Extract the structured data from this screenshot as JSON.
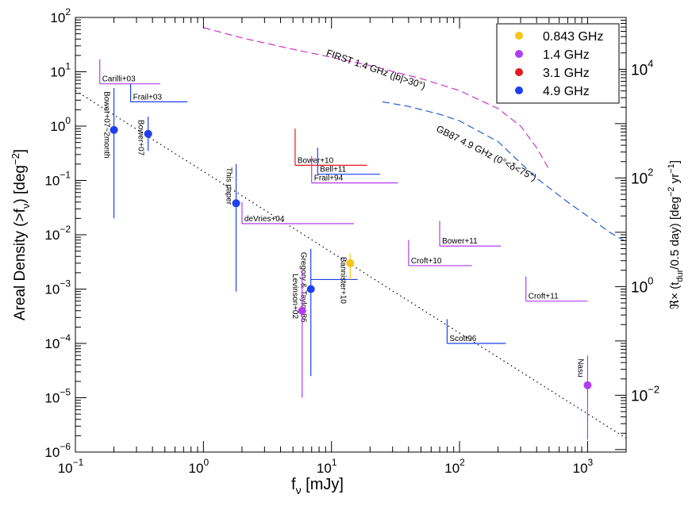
{
  "chart_data": {
    "type": "scatter",
    "title": "",
    "xlabel": "f",
    "xlabel_sub": "ν",
    "xlabel_unit": " [mJy]",
    "ylabel": "Areal Density (>f",
    "ylabel_sub": "ν",
    "ylabel_unit": ") [deg",
    "ylabel_sup": "−2",
    "ylabel_end": "]",
    "y2label": "ℜ× (t",
    "y2label_sub": "dur",
    "y2label_mid": "/0.5 day) [deg",
    "y2label_sup": "−2",
    "y2label_mid2": " yr",
    "y2label_sup2": "−1",
    "y2label_end": "]",
    "xscale": "log",
    "yscale": "log",
    "xlim": [
      0.1,
      2000
    ],
    "ylim": [
      1e-06,
      100
    ],
    "y2lim": [
      0.0009,
      90000
    ],
    "x_ticks": [
      {
        "value": 0.1,
        "base": "10",
        "exp": "−1"
      },
      {
        "value": 1,
        "base": "10",
        "exp": "0"
      },
      {
        "value": 10,
        "base": "10",
        "exp": "1"
      },
      {
        "value": 100,
        "base": "10",
        "exp": "2"
      },
      {
        "value": 1000,
        "base": "10",
        "exp": "3"
      }
    ],
    "y_ticks": [
      {
        "value": 1e-06,
        "base": "10",
        "exp": "−6"
      },
      {
        "value": 1e-05,
        "base": "10",
        "exp": "−5"
      },
      {
        "value": 0.0001,
        "base": "10",
        "exp": "−4"
      },
      {
        "value": 0.001,
        "base": "10",
        "exp": "−3"
      },
      {
        "value": 0.01,
        "base": "10",
        "exp": "−2"
      },
      {
        "value": 0.1,
        "base": "10",
        "exp": "−1"
      },
      {
        "value": 1,
        "base": "10",
        "exp": "0"
      },
      {
        "value": 10,
        "base": "10",
        "exp": "1"
      },
      {
        "value": 100,
        "base": "10",
        "exp": "2"
      }
    ],
    "y2_ticks": [
      {
        "value": 0.01,
        "base": "10",
        "exp": "−2"
      },
      {
        "value": 1,
        "base": "10",
        "exp": "0"
      },
      {
        "value": 100,
        "base": "10",
        "exp": "2"
      },
      {
        "value": 10000,
        "base": "10",
        "exp": "4"
      }
    ],
    "legend": {
      "position": "top-right",
      "entries": [
        {
          "label": "0.843 GHz",
          "color": "#f5c518"
        },
        {
          "label": "1.4 GHz",
          "color": "#b23cf0"
        },
        {
          "label": "3.1 GHz",
          "color": "#e8191e"
        },
        {
          "label": "4.9 GHz",
          "color": "#1f3ff0"
        }
      ]
    },
    "points": [
      {
        "label": "Bower+07~2month",
        "x": 0.2,
        "y": 0.85,
        "ylo": 0.02,
        "yhi": 5,
        "color": "#1f3ff0",
        "label_rotated": true
      },
      {
        "label": "Bower+07",
        "x": 0.37,
        "y": 0.72,
        "ylo": 0.35,
        "yhi": 1.5,
        "color": "#1f3ff0",
        "label_rotated": true
      },
      {
        "label": "This paper",
        "x": 1.8,
        "y": 0.038,
        "ylo": 0.0009,
        "yhi": 0.2,
        "color": "#1f3ff0",
        "label_rotated": true
      },
      {
        "label": "Gregory & Taylor 86",
        "x": 6.9,
        "y": 0.001,
        "ylo": 2.5e-05,
        "yhi": 0.0055,
        "color": "#1f3ff0",
        "label_rotated": true
      },
      {
        "label": "Levinson+02",
        "x": 5.9,
        "y": 0.0004,
        "ylo": 1e-05,
        "yhi": 0.0022,
        "color": "#b23cf0",
        "label_rotated": true
      },
      {
        "label": "Bannister+10",
        "x": 14,
        "y": 0.003,
        "ylo": 0.0015,
        "yhi": 0.0045,
        "color": "#f5c518",
        "label_rotated": true
      },
      {
        "label": "Nasu",
        "x": 1000,
        "y": 1.7e-05,
        "ylo": 1.7e-06,
        "yhi": 6e-05,
        "color": "#b23cf0",
        "label_rotated": true
      }
    ],
    "limits": [
      {
        "label": "Carilli+03",
        "x": 0.155,
        "x2": 0.46,
        "y": 6,
        "ytop": 17,
        "color": "#b23cf0"
      },
      {
        "label": "Frail+03",
        "x": 0.27,
        "x2": 0.75,
        "y": 2.8,
        "ytop": 6,
        "color": "#1f3ff0"
      },
      {
        "label": "Bower+10",
        "x": 5.2,
        "x2": 19,
        "y": 0.19,
        "ytop": 0.9,
        "color": "#e8191e"
      },
      {
        "label": "Bell+11",
        "x": 7.8,
        "x2": 24,
        "y": 0.13,
        "ytop": 0.4,
        "color": "#1f3ff0"
      },
      {
        "label": "Frail+94",
        "x": 7.0,
        "x2": 33,
        "y": 0.09,
        "ytop": 0.28,
        "color": "#b23cf0"
      },
      {
        "label": "deVries+04",
        "x": 2.0,
        "x2": 15,
        "y": 0.016,
        "ytop": 0.04,
        "color": "#b23cf0"
      },
      {
        "label": "Gregory & Taylor 86",
        "x": 6.9,
        "x2": 16,
        "y": 0.0015,
        "ytop": 0.0015,
        "color": "#1f3ff0",
        "hide_label": true
      },
      {
        "label": "Croft+10",
        "x": 40,
        "x2": 125,
        "y": 0.0027,
        "ytop": 0.008,
        "color": "#b23cf0"
      },
      {
        "label": "Bower+11",
        "x": 70,
        "x2": 210,
        "y": 0.0062,
        "ytop": 0.018,
        "color": "#b23cf0"
      },
      {
        "label": "Croft+11",
        "x": 330,
        "x2": 1000,
        "y": 0.0006,
        "ytop": 0.0017,
        "color": "#b23cf0"
      },
      {
        "label": "Scott96",
        "x": 80,
        "x2": 230,
        "y": 0.0001,
        "ytop": 0.00028,
        "color": "#1f3ff0"
      }
    ],
    "curves": [
      {
        "label": "FIRST 1.4 GHz (|b|>30°)",
        "color": "#cc33cc",
        "dash": true,
        "x": [
          1,
          2,
          5,
          10,
          20,
          50,
          100,
          200,
          300,
          400,
          500
        ],
        "y": [
          65,
          42,
          26,
          18.5,
          13,
          7.5,
          4.5,
          2.1,
          1.0,
          0.4,
          0.16
        ]
      },
      {
        "label": "GB87 4.9 GHz (0°<δ<75°)",
        "color": "#1f5fd0",
        "dash": true,
        "x": [
          25,
          40,
          70,
          100,
          200,
          400,
          700,
          1000,
          1500,
          2000
        ],
        "y": [
          2.8,
          2.3,
          1.65,
          1.25,
          0.52,
          0.11,
          0.04,
          0.022,
          0.011,
          0.0075
        ]
      },
      {
        "label": "",
        "color": "#000000",
        "dash": "dot",
        "x": [
          0.1,
          2000
        ],
        "y": [
          4.5,
          1.8e-06
        ]
      }
    ],
    "curve_labels": [
      {
        "text": "FIRST 1.4 GHz (|b|>30°)",
        "x": 9,
        "y": 20,
        "angle": 19
      },
      {
        "text": "GB87 4.9 GHz (0°<δ<75°)",
        "x": 65,
        "y": 0.82,
        "angle": 27
      }
    ]
  }
}
